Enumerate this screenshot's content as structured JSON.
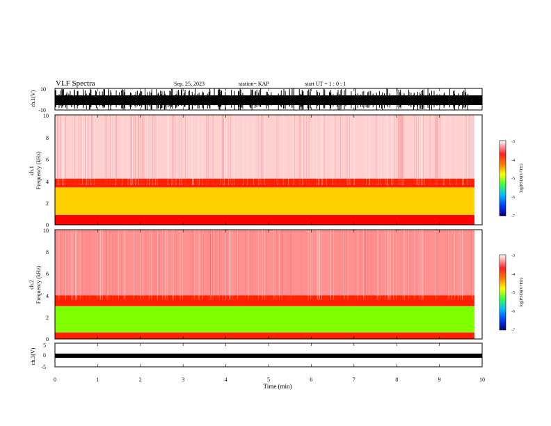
{
  "header": {
    "title": "VLF Spectra",
    "date": "Sep. 25, 2023",
    "station": "station= KAP",
    "start": "start  UT =   1 : 0  : 1"
  },
  "panels": {
    "ch1_wave": {
      "ylabel": "ch.1(V)",
      "ticks": [
        "10",
        "-10"
      ]
    },
    "ch1_spec": {
      "ylabel": "Frequency  (kHz)",
      "ylabel2": "ch.1",
      "ticks": [
        "10",
        "8",
        "6",
        "4",
        "2",
        "0"
      ]
    },
    "ch2_spec": {
      "ylabel": "Frequency  (kHz)",
      "ylabel2": "ch.2",
      "ticks": [
        "10",
        "8",
        "6",
        "4",
        "2",
        "0"
      ]
    },
    "ch3_wave": {
      "ylabel": "ch.3(V)",
      "ticks": [
        "5",
        "0",
        "-5"
      ]
    }
  },
  "colorbars": [
    {
      "ticks": [
        "-3",
        "-4",
        "-5",
        "-6",
        "-7"
      ],
      "label": "log(PSD)(V²/Hz)"
    },
    {
      "ticks": [
        "-3",
        "-4",
        "-5",
        "-6",
        "-7"
      ],
      "label": "log(PSD)(V²/Hz)"
    }
  ],
  "xaxis": {
    "label": "Time  (min)",
    "ticks": [
      "0",
      "1",
      "2",
      "3",
      "4",
      "5",
      "6",
      "7",
      "8",
      "9",
      "10"
    ]
  },
  "chart_data": {
    "type": "heatmap",
    "title": "VLF Spectra",
    "xlabel": "Time  (min)",
    "xlim": [
      0,
      10
    ],
    "data_end_min": 9.82,
    "colormap": [
      "#0000a0",
      "#0050ff",
      "#00c8ff",
      "#00ff80",
      "#80ff00",
      "#ffff00",
      "#ff8000",
      "#ff0000",
      "#ffffff"
    ],
    "clim": [
      -7,
      -3
    ],
    "panels": [
      {
        "name": "ch.1(V)",
        "kind": "waveform",
        "ylim": [
          -10,
          10
        ]
      },
      {
        "name": "ch.1",
        "kind": "spectrogram",
        "ylabel": "Frequency  (kHz)",
        "ylim": [
          0,
          10
        ],
        "bands": [
          {
            "fmin": 0,
            "fmax": 0.9,
            "color": "#ff0000"
          },
          {
            "fmin": 0.9,
            "fmax": 3.4,
            "color": "#ffd000"
          },
          {
            "fmin": 3.4,
            "fmax": 4.2,
            "color": "#ff2000"
          },
          {
            "fmin": 4.2,
            "fmax": 10,
            "color": "#ffd0d0"
          }
        ]
      },
      {
        "name": "ch.2",
        "kind": "spectrogram",
        "ylabel": "Frequency  (kHz)",
        "ylim": [
          0,
          10
        ],
        "bands": [
          {
            "fmin": 0,
            "fmax": 0.6,
            "color": "#ff2000"
          },
          {
            "fmin": 0.6,
            "fmax": 3.0,
            "color": "#80ff00"
          },
          {
            "fmin": 3.0,
            "fmax": 4.0,
            "color": "#ff2000"
          },
          {
            "fmin": 4.0,
            "fmax": 10,
            "color": "#ff9090"
          }
        ]
      },
      {
        "name": "ch.3(V)",
        "kind": "waveform",
        "ylim": [
          -5,
          5
        ]
      }
    ]
  }
}
